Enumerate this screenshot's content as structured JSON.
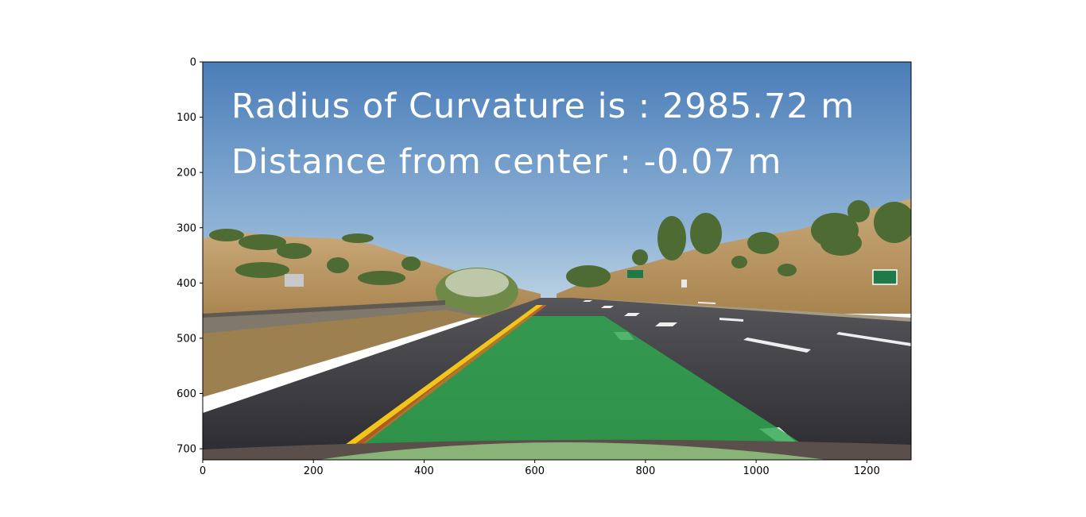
{
  "image": {
    "overlay": {
      "radius_text": "Radius of Curvature is : 2985.72 m",
      "distance_text": "Distance from center : -0.07 m"
    },
    "xlim": [
      0,
      1280
    ],
    "ylim": [
      720,
      0
    ],
    "x_ticks": [
      {
        "value": 0,
        "label": "0"
      },
      {
        "value": 200,
        "label": "200"
      },
      {
        "value": 400,
        "label": "400"
      },
      {
        "value": 600,
        "label": "600"
      },
      {
        "value": 800,
        "label": "800"
      },
      {
        "value": 1000,
        "label": "1000"
      },
      {
        "value": 1200,
        "label": "1200"
      }
    ],
    "y_ticks": [
      {
        "value": 0,
        "label": "0"
      },
      {
        "value": 100,
        "label": "100"
      },
      {
        "value": 200,
        "label": "200"
      },
      {
        "value": 300,
        "label": "300"
      },
      {
        "value": 400,
        "label": "400"
      },
      {
        "value": 500,
        "label": "500"
      },
      {
        "value": 600,
        "label": "600"
      },
      {
        "value": 700,
        "label": "700"
      }
    ],
    "colors": {
      "sky_top": "#4a7db8",
      "sky_bottom": "#a9c7df",
      "road": "#3a3a3e",
      "lane_overlay": "#2fa84f",
      "yellow_line": "#f3c51a",
      "hills": "#b7935f",
      "trees": "#4e6b33"
    }
  }
}
